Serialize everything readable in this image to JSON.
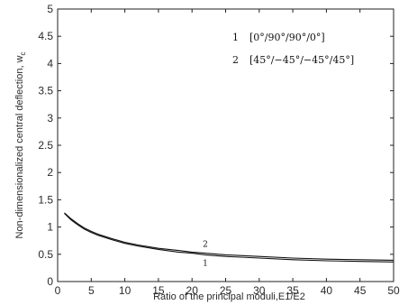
{
  "chart_data": {
    "type": "line",
    "xlabel": "Ratio of the principal moduli,E1/E2",
    "ylabel": "Non-dimensionalized central deflection, w",
    "ylabel_subscript": "c",
    "xlim": [
      0,
      50
    ],
    "ylim": [
      0,
      5
    ],
    "x_ticks": [
      "0",
      "5",
      "10",
      "15",
      "20",
      "25",
      "30",
      "35",
      "40",
      "45",
      "50"
    ],
    "y_ticks": [
      "0",
      "0.5",
      "1",
      "1.5",
      "2",
      "2.5",
      "3",
      "3.5",
      "4",
      "4.5",
      "5"
    ],
    "grid": false,
    "legend_position": "top-right",
    "series": [
      {
        "name": "[0°/90°/90°/0°]",
        "legend_number": "1",
        "curve_label": "1",
        "x": [
          1,
          2,
          3,
          4,
          5,
          6,
          8,
          10,
          12,
          15,
          18,
          20,
          22,
          25,
          30,
          35,
          40,
          45,
          50
        ],
        "y": [
          1.25,
          1.13,
          1.04,
          0.96,
          0.9,
          0.85,
          0.77,
          0.7,
          0.65,
          0.59,
          0.54,
          0.52,
          0.49,
          0.46,
          0.43,
          0.4,
          0.38,
          0.37,
          0.36
        ],
        "color": "#111111"
      },
      {
        "name": "[45°/−45°/−45°/45°]",
        "legend_number": "2",
        "curve_label": "2",
        "x": [
          1,
          2,
          3,
          4,
          5,
          6,
          8,
          10,
          12,
          15,
          18,
          20,
          22,
          25,
          30,
          35,
          40,
          45,
          50
        ],
        "y": [
          1.26,
          1.15,
          1.06,
          0.98,
          0.92,
          0.87,
          0.79,
          0.72,
          0.67,
          0.61,
          0.57,
          0.54,
          0.52,
          0.49,
          0.46,
          0.43,
          0.41,
          0.4,
          0.39
        ],
        "color": "#111111"
      }
    ]
  }
}
